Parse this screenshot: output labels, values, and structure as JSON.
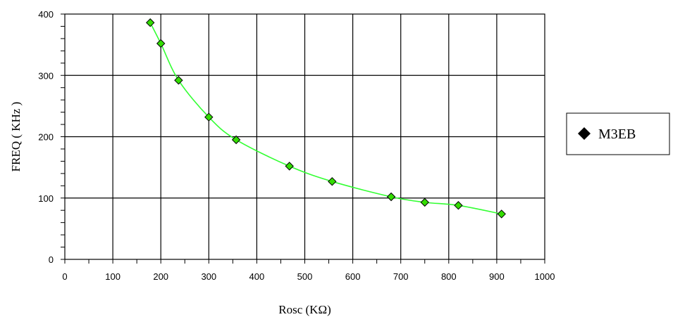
{
  "chart_data": {
    "type": "scatter",
    "xlabel": "Rosc (KΩ)",
    "ylabel": "FREQ ( KHz )",
    "xlim": [
      0,
      1000
    ],
    "ylim": [
      0,
      400
    ],
    "x_ticks": [
      0,
      100,
      200,
      300,
      400,
      500,
      600,
      700,
      800,
      900,
      1000
    ],
    "y_ticks": [
      0,
      100,
      200,
      300,
      400
    ],
    "x_minor_step": 50,
    "y_minor_step": 20,
    "grid": true,
    "legend_position": "right",
    "series": [
      {
        "name": "M3EB",
        "marker": "diamond",
        "marker_color": "#33dd00",
        "line_color": "#33ff33",
        "line": "smooth",
        "x": [
          178,
          200,
          237,
          300,
          357,
          468,
          557,
          680,
          750,
          820,
          910
        ],
        "y": [
          386,
          352,
          292,
          232,
          195,
          152,
          127,
          102,
          93,
          88,
          74
        ]
      }
    ]
  }
}
